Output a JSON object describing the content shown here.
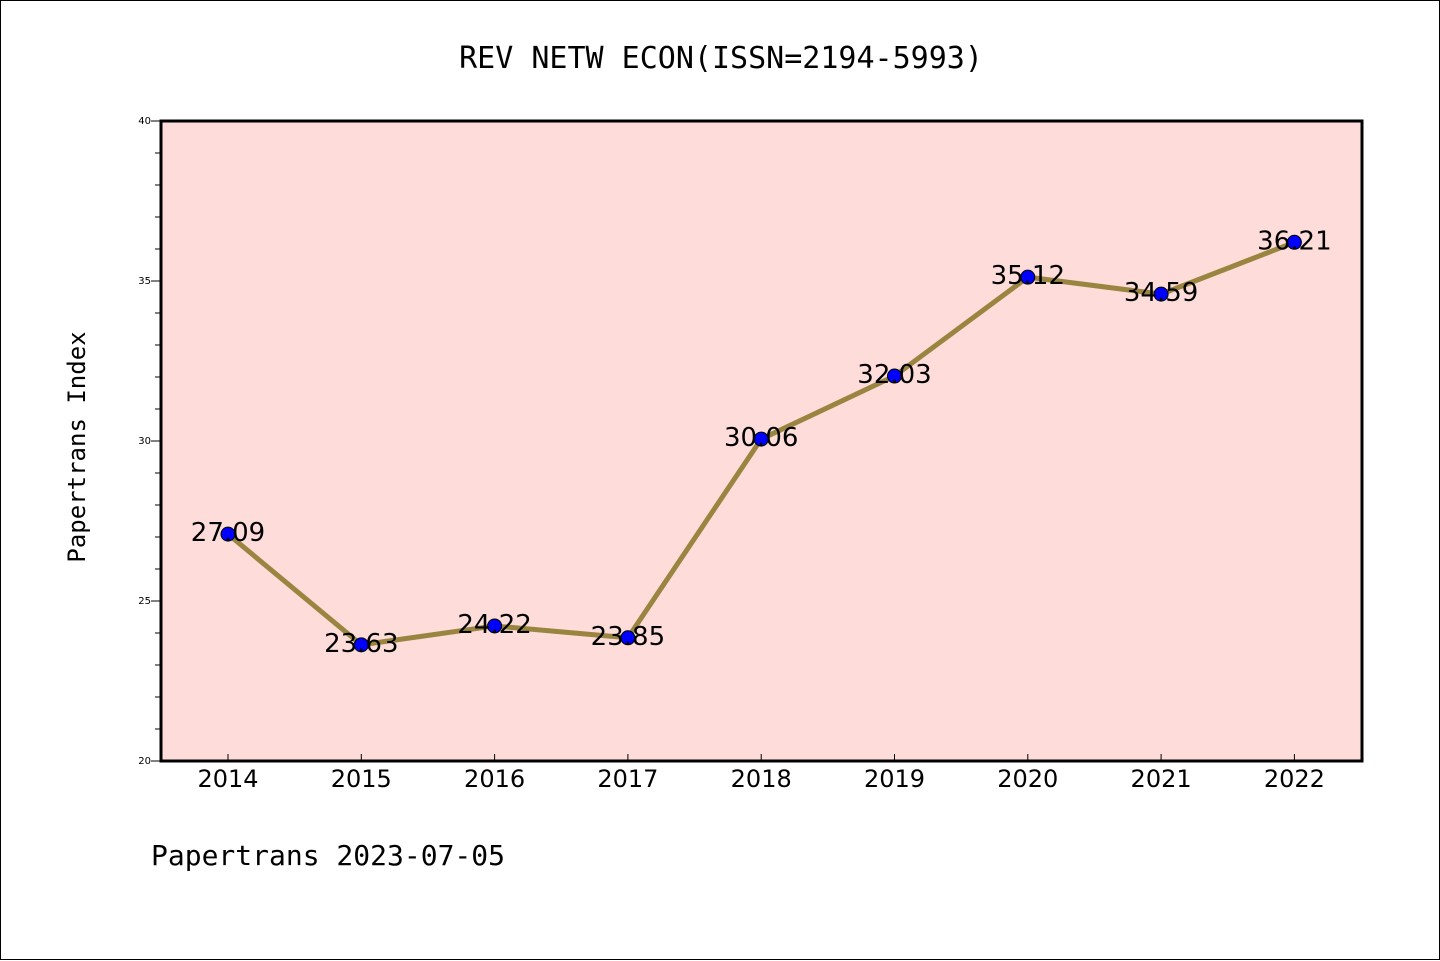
{
  "chart_data": {
    "type": "line",
    "title": "REV NETW ECON(ISSN=2194-5993)",
    "xlabel": "",
    "ylabel": "Papertrans Index",
    "categories": [
      "2014",
      "2015",
      "2016",
      "2017",
      "2018",
      "2019",
      "2020",
      "2021",
      "2022"
    ],
    "series": [
      {
        "values": [
          27.09,
          23.63,
          24.22,
          23.85,
          30.06,
          32.03,
          35.12,
          34.59,
          36.21
        ],
        "labels": [
          "27.09",
          "23.63",
          "24.22",
          "23.85",
          "30.06",
          "32.03",
          "35.12",
          "34.59",
          "36.21"
        ]
      }
    ],
    "ylim": [
      20,
      40
    ],
    "yticks": [
      "20",
      "25",
      "30",
      "35",
      "40"
    ],
    "grid": false,
    "legend": "none",
    "colors": {
      "plot_background": "#fddcda",
      "line": "#9a8540",
      "marker": "#0000ff"
    }
  },
  "footer": {
    "text": "Papertrans 2023-07-05"
  }
}
